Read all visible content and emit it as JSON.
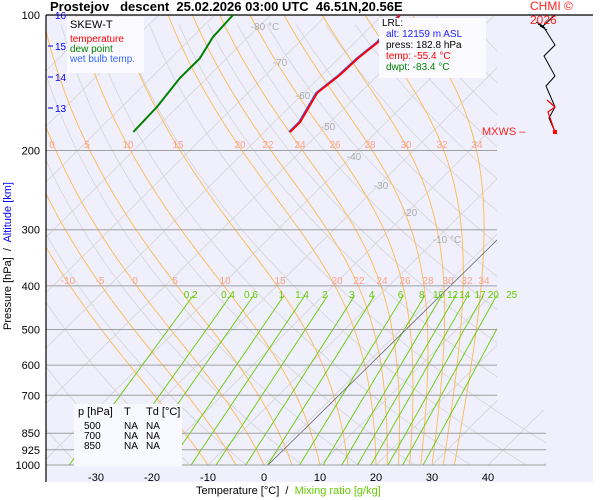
{
  "header": {
    "title": "Prostejov   descent  25.02.2026 03:00 UTC  46.51N,20.56E",
    "copyright": "CHMI © 2026"
  },
  "legend": {
    "title": "SKEW-T",
    "items": [
      {
        "label": "temperature",
        "color": "#ff0000"
      },
      {
        "label": "dew point",
        "color": "#008000"
      },
      {
        "label": "wet bulb temp.",
        "color": "#3366ff"
      }
    ]
  },
  "lrl": {
    "title": "LRL:",
    "alt": "alt: 12159 m ASL",
    "press": "press: 182.8 hPa",
    "temp": "temp: -55.4 °C",
    "dwpt": "dwpt: -83.4 °C"
  },
  "mxws_label": "MXWS",
  "table": {
    "headers": [
      "p [hPa]",
      "T",
      "Td [°C]"
    ],
    "rows": [
      [
        "500",
        "NA",
        "NA"
      ],
      [
        "700",
        "NA",
        "NA"
      ],
      [
        "850",
        "NA",
        "NA"
      ]
    ]
  },
  "chart_data": {
    "type": "line",
    "subtype": "skew-t log-p",
    "xlabel": "Temperature [°C]",
    "xlabel_sep": "/",
    "xlabel2": "Mixing ratio [g/kg]",
    "ylabel": "Pressure [hPa]",
    "ylabel_sep": "/",
    "ylabel2": "Altitude [km]",
    "y_scale": "log",
    "ylim": [
      1000,
      100
    ],
    "y_ticks": [
      "100",
      "200",
      "300",
      "400",
      "500",
      "600",
      "700",
      "850",
      "925",
      "1000"
    ],
    "x_ticks": [
      "-30",
      "-20",
      "-10",
      "0",
      "10",
      "20",
      "30",
      "40"
    ],
    "altitude_ticks_km": [
      "16",
      "15",
      "14",
      "13"
    ],
    "isotherm_labels": [
      "-80 °C",
      "-70",
      "-60",
      "-50",
      "-40",
      "-30",
      "-20",
      "-10 °C"
    ],
    "adiabat_labels_upper": [
      "0",
      "5",
      "10",
      "15",
      "20",
      "22",
      "24",
      "26",
      "28",
      "30",
      "32",
      "34"
    ],
    "adiabat_labels_lower": [
      "-10",
      "-5",
      "0",
      "5",
      "10",
      "15",
      "20",
      "22",
      "24",
      "26",
      "28",
      "30",
      "32",
      "34"
    ],
    "mixing_ratio_labels": [
      "0.2",
      "0.4",
      "0.6",
      "1",
      "1.4",
      "2",
      "3",
      "4",
      "6",
      "8",
      "10",
      "12",
      "14",
      "17",
      "20",
      "25"
    ],
    "colors": {
      "background": "#f0f0fc",
      "isobar": "#a0a0a0",
      "isotherm": "#d4d4d4",
      "moist_adiabat": "#ffb850",
      "mixing_ratio": "#66cc00",
      "adiabat_label": "#ffa088",
      "altitude": "#0000ff"
    },
    "series": [
      {
        "name": "temperature",
        "color": "#ff0000",
        "points": [
          [
            182,
            -55.4
          ],
          [
            173,
            -55.4
          ],
          [
            149,
            -57.6
          ],
          [
            136,
            -56.8
          ],
          [
            125,
            -56.6
          ],
          [
            115,
            -55.9
          ],
          [
            100,
            -56.9
          ]
        ]
      },
      {
        "name": "dew point",
        "color": "#008000",
        "points": [
          [
            182,
            -83.4
          ],
          [
            160,
            -83.7
          ],
          [
            138,
            -84.8
          ],
          [
            125,
            -84.8
          ],
          [
            112,
            -86.3
          ],
          [
            100,
            -86.7
          ]
        ]
      }
    ]
  }
}
